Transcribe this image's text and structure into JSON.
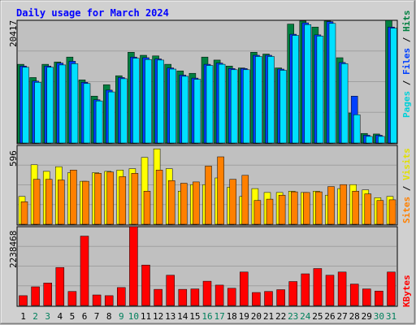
{
  "chart_data": {
    "type": "bar",
    "title": "Daily usage for March 2024",
    "days": [
      "1",
      "2",
      "3",
      "4",
      "5",
      "6",
      "7",
      "8",
      "9",
      "10",
      "11",
      "12",
      "13",
      "14",
      "15",
      "16",
      "17",
      "18",
      "19",
      "20",
      "21",
      "22",
      "23",
      "24",
      "25",
      "26",
      "27",
      "28",
      "29",
      "30",
      "31"
    ],
    "weekend_days": [
      "2",
      "3",
      "9",
      "10",
      "16",
      "17",
      "23",
      "24",
      "30",
      "31"
    ],
    "panels": [
      {
        "id": "hits_files_pages",
        "max_label": "20417",
        "ymax": 20417,
        "legend": [
          "Pages",
          "Files",
          "Hits"
        ],
        "series": [
          {
            "name": "Hits",
            "values": [
              13100,
              10900,
              13100,
              13500,
              14300,
              10500,
              7800,
              9700,
              11200,
              15100,
              14600,
              14500,
              13100,
              12000,
              11600,
              14300,
              13800,
              12800,
              12500,
              15100,
              14800,
              12500,
              19800,
              20300,
              19300,
              20300,
              14200,
              5000,
              1600,
              1500,
              20400
            ]
          },
          {
            "name": "Files",
            "values": [
              12800,
              10300,
              12800,
              13300,
              13600,
              10100,
              7200,
              8800,
              10900,
              14300,
              14200,
              14000,
              12500,
              11300,
              10800,
              13100,
              13300,
              12400,
              12400,
              14600,
              14600,
              12300,
              18100,
              20000,
              18000,
              20200,
              13400,
              7800,
              1300,
              1300,
              19300
            ]
          },
          {
            "name": "Pages",
            "values": [
              12600,
              10100,
              12600,
              13000,
              13200,
              9900,
              7000,
              8500,
              10700,
              14100,
              13900,
              13800,
              12300,
              11100,
              10600,
              12900,
              13100,
              12200,
              12200,
              14400,
              14400,
              12100,
              17900,
              19700,
              17800,
              19900,
              13200,
              4700,
              1100,
              1100,
              19100
            ]
          }
        ]
      },
      {
        "id": "visits_sites",
        "max_label": "596",
        "ymax": 596,
        "legend": [
          "Sites",
          "Visits"
        ],
        "series": [
          {
            "name": "Visits",
            "values": [
              210,
              450,
              400,
              435,
              390,
              325,
              390,
              400,
              410,
              420,
              505,
              570,
              420,
              250,
              300,
              300,
              350,
              280,
              210,
              270,
              240,
              240,
              250,
              240,
              250,
              220,
              270,
              300,
              260,
              200,
              210
            ]
          },
          {
            "name": "Sites",
            "values": [
              170,
              340,
              340,
              335,
              410,
              325,
              385,
              395,
              360,
              385,
              250,
              410,
              330,
              310,
              320,
              440,
              510,
              340,
              370,
              180,
              190,
              220,
              245,
              240,
              245,
              285,
              300,
              250,
              230,
              180,
              185
            ]
          }
        ]
      },
      {
        "id": "kbytes",
        "max_label": "2238468",
        "ymax": 2238468,
        "legend": [
          "KBytes"
        ],
        "series": [
          {
            "name": "KBytes",
            "values": [
              280000,
              530000,
              640000,
              1080000,
              400000,
              1970000,
              300000,
              280000,
              510000,
              2238468,
              1150000,
              460000,
              860000,
              460000,
              470000,
              690000,
              580000,
              490000,
              950000,
              370000,
              400000,
              450000,
              680000,
              900000,
              1050000,
              860000,
              950000,
              610000,
              470000,
              410000,
              950000
            ]
          }
        ]
      }
    ]
  },
  "colors": {
    "hits": "#008040",
    "files": "#0040ff",
    "pages": "#00e0ff",
    "visits": "#ffff00",
    "sites": "#ff8000",
    "kbytes": "#ff0000",
    "weekday_label": "#000000",
    "weekend_label": "#00805c",
    "title": "#0000ff",
    "plot_bg": "#c0c0c0",
    "frame_bg": "#d0d0d0"
  }
}
